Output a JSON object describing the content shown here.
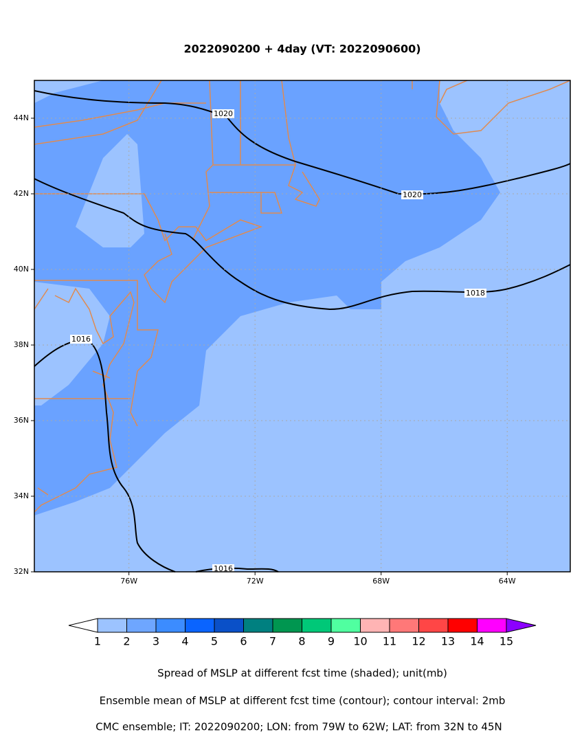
{
  "title": "2022090200 + 4day (VT: 2022090600)",
  "map": {
    "xlim": [
      -79,
      -62
    ],
    "ylim": [
      32,
      45
    ],
    "xticks": [
      {
        "value": -76,
        "label": "76W"
      },
      {
        "value": -72,
        "label": "72W"
      },
      {
        "value": -68,
        "label": "68W"
      },
      {
        "value": -64,
        "label": "64W"
      }
    ],
    "yticks": [
      {
        "value": 32,
        "label": "32N"
      },
      {
        "value": 34,
        "label": "34N"
      },
      {
        "value": 36,
        "label": "36N"
      },
      {
        "value": 38,
        "label": "38N"
      },
      {
        "value": 40,
        "label": "40N"
      },
      {
        "value": 42,
        "label": "42N"
      },
      {
        "value": 44,
        "label": "44N"
      }
    ],
    "grid": true,
    "contour_labels": [
      "1020",
      "1020",
      "1018",
      "1016",
      "1016"
    ]
  },
  "colorbar": {
    "levels": [
      1,
      2,
      3,
      4,
      5,
      6,
      7,
      8,
      9,
      10,
      11,
      12,
      13,
      14,
      15
    ],
    "colors": [
      "#ffffff",
      "#9cc3ff",
      "#6ea6ff",
      "#3c8cff",
      "#0a64ff",
      "#0a50c8",
      "#008080",
      "#009650",
      "#00c878",
      "#50ffa0",
      "#ffb4b4",
      "#ff7878",
      "#ff4646",
      "#ff0000",
      "#ff00ff",
      "#8c00ff"
    ]
  },
  "footer": [
    "Spread of MSLP at different fcst time (shaded); unit(mb)",
    "Ensemble mean of MSLP at different fcst time (contour); contour interval: 2mb",
    "CMC ensemble; IT: 2022090200; LON: from 79W to 62W; LAT: from 32N to 45N"
  ]
}
